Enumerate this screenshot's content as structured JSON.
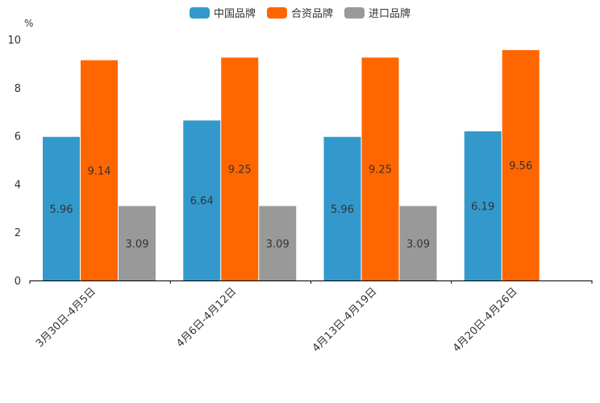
{
  "chart_data": {
    "type": "bar",
    "title": "",
    "ylabel": "%",
    "xlabel": "",
    "ylim": [
      0,
      10
    ],
    "yticks": [
      0,
      2,
      4,
      6,
      8,
      10
    ],
    "categories": [
      "3月30日-4月5日",
      "4月6日-4月12日",
      "4月13日-4月19日",
      "4月20日-4月26日"
    ],
    "series": [
      {
        "name": "中国品牌",
        "color": "#3399CC",
        "values": [
          5.96,
          6.64,
          5.96,
          6.19
        ]
      },
      {
        "name": "合资品牌",
        "color": "#FF6600",
        "values": [
          9.14,
          9.25,
          9.25,
          9.56
        ]
      },
      {
        "name": "进口品牌",
        "color": "#999999",
        "values": [
          3.09,
          3.09,
          3.09,
          null
        ]
      }
    ],
    "data_labels": [
      [
        "5.96",
        "6.64",
        "5.96",
        "6.19"
      ],
      [
        "9.14",
        "9.25",
        "9.25",
        "9.56"
      ],
      [
        "3.09",
        "3.09",
        "3.09",
        null
      ]
    ],
    "legend_position": "top-center",
    "grid": false
  }
}
